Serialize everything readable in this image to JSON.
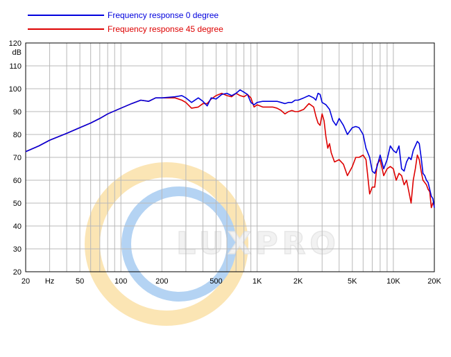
{
  "chart_data": {
    "type": "line",
    "title": "",
    "xlabel": "",
    "ylabel": "dB",
    "x_scale": "log",
    "xlim": [
      20,
      20000
    ],
    "ylim": [
      20,
      120
    ],
    "grid": true,
    "legend_position": "top-left",
    "y_ticks": [
      20,
      30,
      40,
      50,
      60,
      70,
      80,
      90,
      100,
      110,
      120
    ],
    "x_tick_labels": [
      {
        "value": 20,
        "label": "20"
      },
      {
        "value": 30,
        "label": "Hz"
      },
      {
        "value": 50,
        "label": "50"
      },
      {
        "value": 100,
        "label": "100"
      },
      {
        "value": 200,
        "label": "200"
      },
      {
        "value": 500,
        "label": "500"
      },
      {
        "value": 1000,
        "label": "1K"
      },
      {
        "value": 2000,
        "label": "2K"
      },
      {
        "value": 5000,
        "label": "5K"
      },
      {
        "value": 10000,
        "label": "10K"
      },
      {
        "value": 20000,
        "label": "20K"
      }
    ],
    "series": [
      {
        "name": "Frequency response 0 degree",
        "color": "#0000dd",
        "x": [
          20,
          25,
          30,
          40,
          50,
          60,
          70,
          80,
          100,
          120,
          140,
          160,
          180,
          200,
          250,
          280,
          300,
          330,
          370,
          400,
          430,
          460,
          500,
          550,
          600,
          650,
          700,
          750,
          800,
          850,
          900,
          950,
          1000,
          1100,
          1200,
          1300,
          1400,
          1500,
          1600,
          1700,
          1800,
          1900,
          2000,
          2200,
          2400,
          2600,
          2700,
          2800,
          2900,
          3000,
          3200,
          3400,
          3600,
          3800,
          4000,
          4300,
          4600,
          5000,
          5300,
          5600,
          6000,
          6300,
          6700,
          7000,
          7300,
          7600,
          8000,
          8500,
          9000,
          9500,
          10000,
          10500,
          11000,
          11500,
          12000,
          12500,
          13000,
          13500,
          14000,
          14500,
          15000,
          15500,
          16000,
          16500,
          17000,
          17500,
          18000,
          18500,
          19000,
          19500,
          20000
        ],
        "y": [
          72.5,
          75,
          77.5,
          80.5,
          83,
          85,
          87,
          89,
          91.5,
          93.5,
          95,
          94.5,
          96,
          96,
          96.5,
          97,
          96,
          94,
          96,
          94.5,
          92.5,
          96,
          95.5,
          97.5,
          98,
          97,
          98,
          99.5,
          98.5,
          97.5,
          94,
          93,
          94,
          94.5,
          94.5,
          94.5,
          94.5,
          94,
          93.5,
          94,
          94,
          95,
          95,
          96,
          97,
          96,
          95,
          98,
          97.5,
          94,
          93,
          91,
          86,
          84,
          87,
          84,
          80,
          83,
          83.5,
          83,
          80,
          74,
          70,
          64,
          63,
          66,
          71,
          65,
          69,
          75,
          73,
          72,
          75,
          65,
          64,
          68,
          70,
          69,
          73,
          75,
          77,
          76,
          70,
          63,
          62,
          60,
          59,
          56,
          53,
          52,
          48
        ]
      },
      {
        "name": "Frequency response 45 degree",
        "color": "#dd0000",
        "x": [
          20,
          25,
          30,
          40,
          50,
          60,
          70,
          80,
          100,
          120,
          140,
          160,
          180,
          200,
          250,
          280,
          300,
          330,
          370,
          400,
          430,
          460,
          500,
          550,
          600,
          650,
          700,
          750,
          800,
          850,
          900,
          950,
          1000,
          1100,
          1200,
          1300,
          1400,
          1500,
          1600,
          1700,
          1800,
          1900,
          2000,
          2200,
          2400,
          2600,
          2700,
          2800,
          2900,
          3000,
          3100,
          3200,
          3300,
          3400,
          3500,
          3700,
          4000,
          4300,
          4600,
          5000,
          5300,
          5600,
          6000,
          6300,
          6700,
          7000,
          7300,
          7600,
          8000,
          8500,
          9000,
          9500,
          10000,
          10500,
          11000,
          11500,
          12000,
          12500,
          13000,
          13500,
          14000,
          14500,
          15000,
          15500,
          16000,
          16500,
          17000,
          17500,
          18000,
          18500,
          19000,
          19500,
          20000
        ],
        "y": [
          72.5,
          75,
          77.5,
          80.5,
          83,
          85,
          87,
          89,
          91.5,
          93.5,
          95,
          94.5,
          96,
          96,
          96,
          95,
          94,
          91.5,
          92,
          93.5,
          93.5,
          95.5,
          97,
          98,
          97,
          96.5,
          98,
          97,
          96.5,
          97.5,
          96,
          92,
          93,
          92,
          92,
          92,
          91.5,
          90.5,
          89,
          90,
          90.5,
          90,
          90,
          91,
          93.5,
          92,
          88,
          85,
          84,
          89,
          86,
          79,
          74,
          76,
          72,
          68,
          69,
          67,
          62,
          66,
          70,
          70,
          71,
          69,
          54,
          57,
          57,
          67,
          69,
          62,
          65,
          66,
          65,
          60,
          63,
          62,
          58,
          60,
          55,
          50,
          60,
          65,
          71,
          69,
          64,
          60,
          59,
          58,
          56,
          55,
          48,
          50,
          49
        ]
      }
    ]
  },
  "watermark": {
    "text": "LUXPRO",
    "ring_outer_color": "#f7c65a",
    "ring_inner_color": "#5aa0e6"
  },
  "colors": {
    "axis": "#000000",
    "grid": "#b8b8b8",
    "plot_background": "#ffffff"
  }
}
